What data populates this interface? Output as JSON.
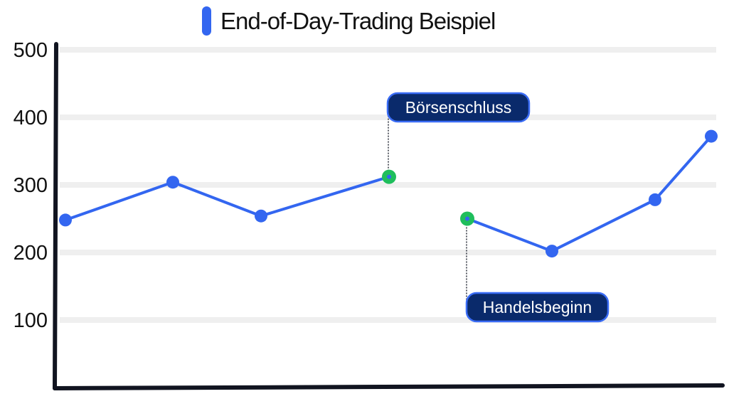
{
  "chart_data": {
    "type": "line",
    "title": "End-of-Day-Trading Beispiel",
    "xlabel": "",
    "ylabel": "",
    "ylim": [
      0,
      500
    ],
    "y_ticks": [
      100,
      200,
      300,
      400,
      500
    ],
    "grid": true,
    "legend": "top-center",
    "series": [
      {
        "name": "End-of-Day-Trading Beispiel",
        "segments": [
          {
            "x": [
              1,
              2,
              3,
              4
            ],
            "y": [
              248,
              304,
              254,
              312
            ]
          },
          {
            "x": [
              5,
              6,
              7,
              8
            ],
            "y": [
              250,
              202,
              278,
              372
            ]
          }
        ]
      }
    ],
    "annotations": [
      {
        "label": "Börsenschluss",
        "x": 4,
        "y": 312,
        "position": "above"
      },
      {
        "label": "Handelsbeginn",
        "x": 5,
        "y": 250,
        "position": "below"
      }
    ],
    "colors": {
      "line": "#3366f0",
      "highlight": "#1fbe5c",
      "callout_fill": "#0a2a6b",
      "callout_border": "#3a6cf5",
      "grid": "#efefef",
      "axis": "#111420"
    }
  }
}
